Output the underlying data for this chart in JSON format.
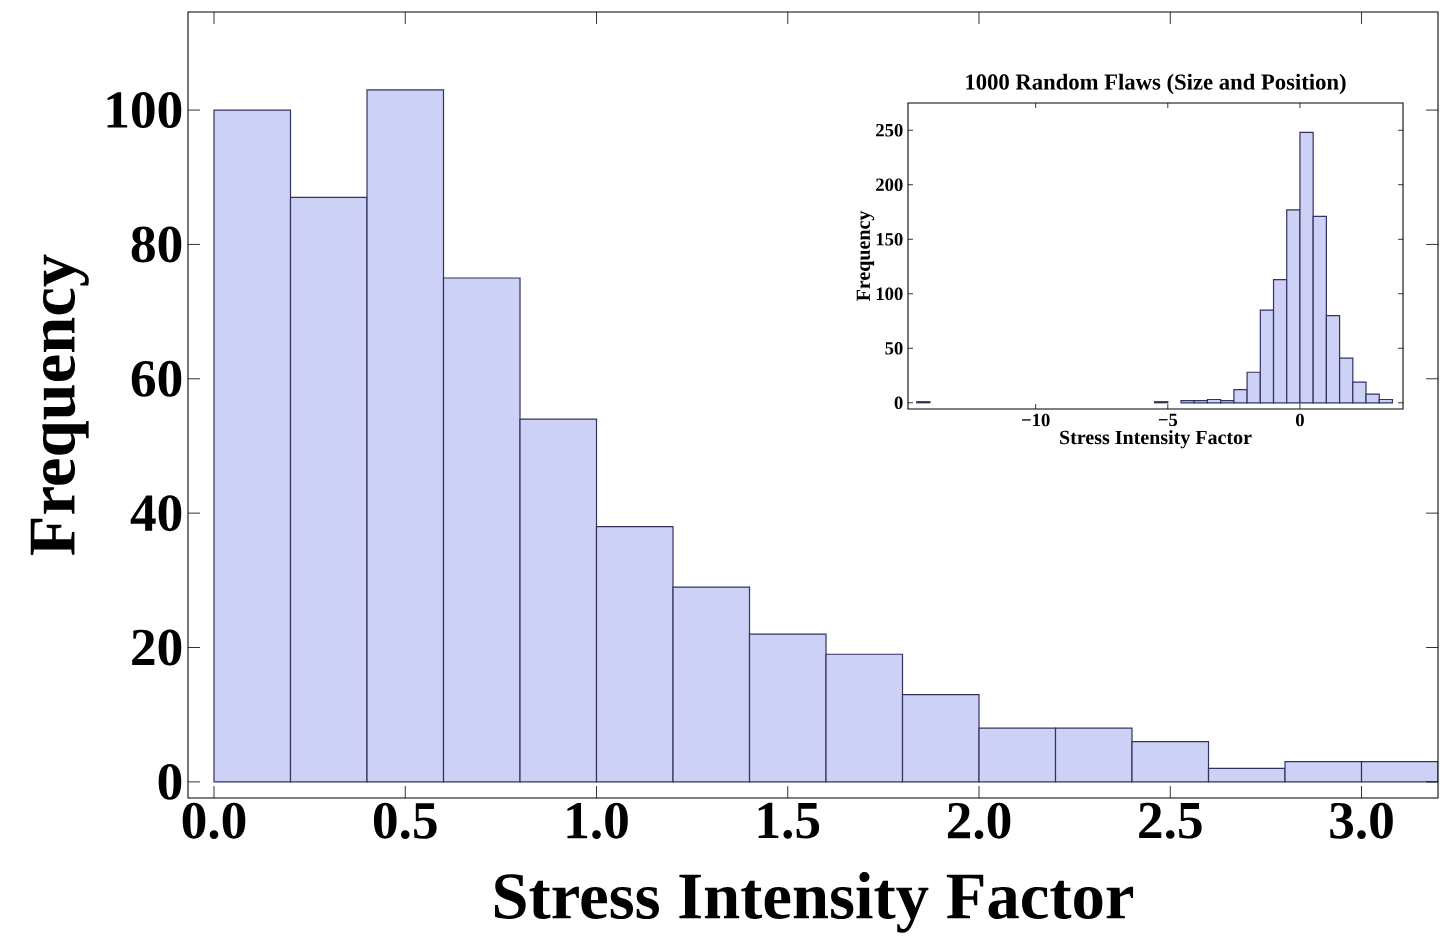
{
  "chart_data": [
    {
      "type": "histogram",
      "xlabel": "Stress Intensity Factor",
      "ylabel": "Frequency",
      "color": "#ccd1f5",
      "bins": [
        0,
        0.2,
        0.4,
        0.6,
        0.8,
        1.0,
        1.2,
        1.4,
        1.6,
        1.8,
        2.0,
        2.2,
        2.4,
        2.6,
        2.8,
        3.0,
        3.2
      ],
      "values": [
        100,
        87,
        103,
        75,
        54,
        38,
        29,
        22,
        19,
        13,
        8,
        8,
        6,
        2,
        3,
        3
      ],
      "xlim": [
        -0.068,
        3.2
      ],
      "ylim": [
        -2.4,
        114.6
      ],
      "xticks": [
        {
          "value": 0,
          "label": "0.0"
        },
        {
          "value": 0.5,
          "label": "0.5"
        },
        {
          "value": 1,
          "label": "1.0"
        },
        {
          "value": 1.5,
          "label": "1.5"
        },
        {
          "value": 2,
          "label": "2.0"
        },
        {
          "value": 2.5,
          "label": "2.5"
        },
        {
          "value": 3,
          "label": "3.0"
        }
      ],
      "yticks": [
        0,
        20,
        40,
        60,
        80,
        100
      ]
    },
    {
      "type": "histogram",
      "title": "1000 Random Flaws (Size and Position)",
      "xlabel": "Stress Intensity Factor",
      "ylabel": "Frequency",
      "color": "#ccd1f5",
      "bins": [
        -14.5,
        -14,
        -13.5,
        -13,
        -12.5,
        -12,
        -11.5,
        -11,
        -10.5,
        -10,
        -9.5,
        -9,
        -8.5,
        -8,
        -7.5,
        -7,
        -6.5,
        -6,
        -5.5,
        -5,
        -4.5,
        -4,
        -3.5,
        -3,
        -2.5,
        -2,
        -1.5,
        -1,
        -0.5,
        0,
        0.5,
        1,
        1.5,
        2,
        2.5,
        3,
        3.5
      ],
      "values": [
        1,
        0,
        0,
        0,
        0,
        0,
        0,
        0,
        0,
        0,
        0,
        0,
        0,
        0,
        0,
        0,
        0,
        0,
        1,
        0,
        2,
        2,
        3,
        2,
        12,
        28,
        85,
        113,
        177,
        248,
        171,
        80,
        41,
        19,
        8,
        3
      ],
      "xlim": [
        -14.83,
        3.9
      ],
      "ylim": [
        -5.7,
        275
      ],
      "xticks": [
        {
          "value": -10,
          "label": "−10"
        },
        {
          "value": -5,
          "label": "−5"
        },
        0
      ],
      "yticks": [
        0,
        50,
        100,
        150,
        200,
        250
      ]
    }
  ]
}
